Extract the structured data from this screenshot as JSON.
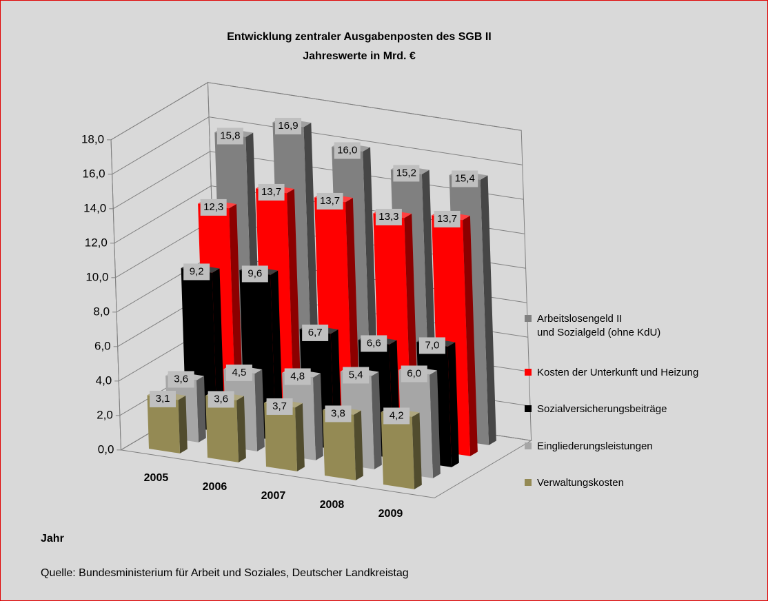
{
  "chart_data": {
    "type": "bar3d",
    "title": "Entwicklung zentraler Ausgabenposten des SGB II",
    "subtitle": "Jahreswerte in Mrd. €",
    "x_label": "Jahr",
    "source": "Quelle: Bundesministerium für Arbeit und Soziales, Deutscher Landkreistag",
    "categories": [
      "2005",
      "2006",
      "2007",
      "2008",
      "2009"
    ],
    "series": [
      {
        "name": "Arbeitslosengeld II\nund Sozialgeld (ohne KdU)",
        "color": "#808080",
        "values": [
          15.8,
          16.9,
          16.0,
          15.2,
          15.4
        ],
        "value_labels": [
          "15,8",
          "16,9",
          "16,0",
          "15,2",
          "15,4"
        ]
      },
      {
        "name": "Kosten der Unterkunft und Heizung",
        "color": "#ff0000",
        "values": [
          12.3,
          13.7,
          13.7,
          13.3,
          13.7
        ],
        "value_labels": [
          "12,3",
          "13,7",
          "13,7",
          "13,3",
          "13,7"
        ]
      },
      {
        "name": "Sozialversicherungsbeiträge",
        "color": "#000000",
        "values": [
          9.2,
          9.6,
          6.7,
          6.6,
          7.0
        ],
        "value_labels": [
          "9,2",
          "9,6",
          "6,7",
          "6,6",
          "7,0"
        ]
      },
      {
        "name": "Eingliederungsleistungen",
        "color": "#a6a6a6",
        "values": [
          3.6,
          4.5,
          4.8,
          5.4,
          6.0
        ],
        "value_labels": [
          "3,6",
          "4,5",
          "4,8",
          "5,4",
          "6,0"
        ]
      },
      {
        "name": "Verwaltungskosten",
        "color": "#948a54",
        "values": [
          3.1,
          3.6,
          3.7,
          3.8,
          4.2
        ],
        "value_labels": [
          "3,1",
          "3,6",
          "3,7",
          "3,8",
          "4,2"
        ]
      }
    ],
    "ylim": [
      0,
      18
    ],
    "yticks": [
      {
        "value": 0,
        "label": "0,0"
      },
      {
        "value": 2,
        "label": "2,0"
      },
      {
        "value": 4,
        "label": "4,0"
      },
      {
        "value": 6,
        "label": "6,0"
      },
      {
        "value": 8,
        "label": "8,0"
      },
      {
        "value": 10,
        "label": "10,0"
      },
      {
        "value": 12,
        "label": "12,0"
      },
      {
        "value": 14,
        "label": "14,0"
      },
      {
        "value": 16,
        "label": "16,0"
      },
      {
        "value": 18,
        "label": "18,0"
      }
    ],
    "grid": true,
    "legend": "right"
  }
}
